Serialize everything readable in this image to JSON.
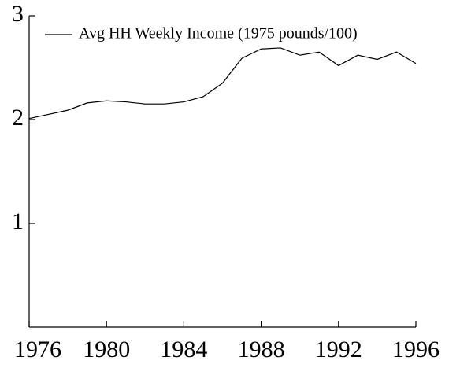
{
  "chart_data": {
    "type": "line",
    "x": [
      1976,
      1977,
      1978,
      1979,
      1980,
      1981,
      1982,
      1983,
      1984,
      1985,
      1986,
      1987,
      1988,
      1989,
      1990,
      1991,
      1992,
      1993,
      1994,
      1995,
      1996
    ],
    "series": [
      {
        "name": "Avg HH Weekly Income (1975 pounds/100)",
        "color": "#000000",
        "values": [
          2.01,
          2.05,
          2.09,
          2.16,
          2.18,
          2.17,
          2.15,
          2.15,
          2.17,
          2.22,
          2.35,
          2.59,
          2.68,
          2.69,
          2.62,
          2.65,
          2.52,
          2.62,
          2.58,
          2.65,
          2.54
        ]
      }
    ],
    "xlim": [
      1976,
      1996
    ],
    "xticks": [
      1976,
      1980,
      1984,
      1988,
      1992,
      1996
    ],
    "ylim": [
      0,
      3
    ],
    "yticks": [
      1,
      2,
      3
    ],
    "legend": "top-left"
  }
}
